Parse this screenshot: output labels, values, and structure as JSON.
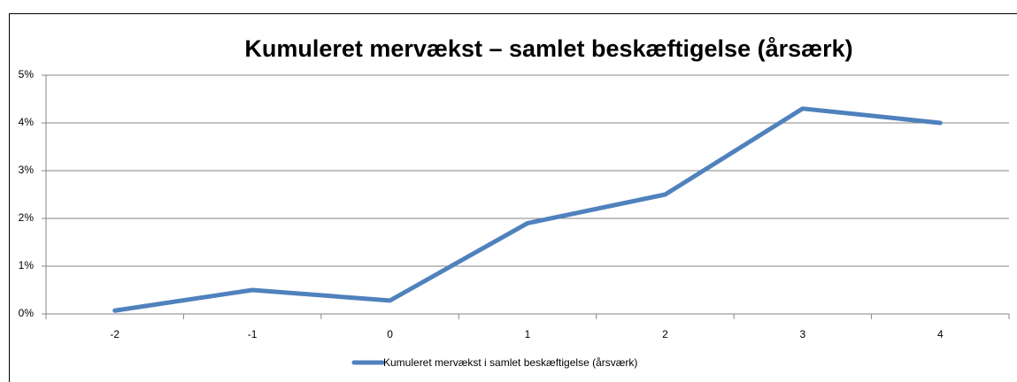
{
  "chart_data": {
    "type": "line",
    "title": "Kumuleret mervækst – samlet beskæftigelse (årsærk)",
    "categories": [
      "-2",
      "-1",
      "0",
      "1",
      "2",
      "3",
      "4"
    ],
    "series": [
      {
        "name": "Kumuleret mervækst i samlet beskæftigelse (årsværk)",
        "color": "#4f81bd",
        "values": [
          0.07,
          0.5,
          0.28,
          1.9,
          2.5,
          4.3,
          4.0
        ]
      }
    ],
    "ylim": [
      0,
      5
    ],
    "yticks": [
      {
        "value": 0,
        "label": "0%"
      },
      {
        "value": 1,
        "label": "1%"
      },
      {
        "value": 2,
        "label": "2%"
      },
      {
        "value": 3,
        "label": "3%"
      },
      {
        "value": 4,
        "label": "4%"
      },
      {
        "value": 5,
        "label": "5%"
      }
    ],
    "grid": true,
    "legend": "bottom"
  }
}
